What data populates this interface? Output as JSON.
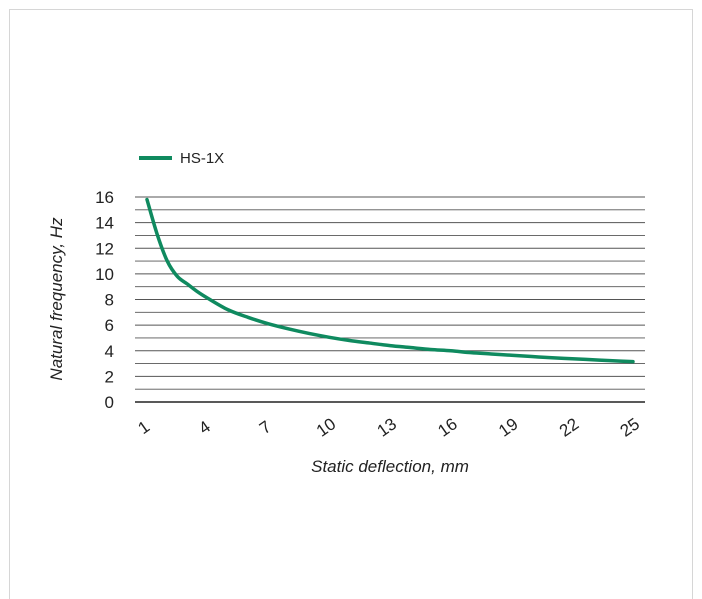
{
  "chart_data": {
    "type": "line",
    "xlabel": "Static deflection, mm",
    "ylabel": "Natural frequency, Hz",
    "x_ticks": [
      1,
      4,
      7,
      10,
      13,
      16,
      19,
      22,
      25
    ],
    "y_ticks": [
      0,
      2,
      4,
      6,
      8,
      10,
      12,
      14,
      16
    ],
    "xlim": [
      1,
      25
    ],
    "ylim": [
      0,
      16
    ],
    "grid": "horizontal",
    "legend_position": "top-left",
    "series": [
      {
        "name": "HS-1X",
        "color": "#0f8a5f",
        "x": [
          1,
          1.5,
          2,
          2.5,
          3,
          3.5,
          4,
          5,
          6,
          7,
          8,
          9,
          10,
          11,
          12,
          13,
          14,
          15,
          16,
          17,
          18,
          19,
          20,
          21,
          22,
          23,
          24,
          25
        ],
        "y": [
          15.8,
          13.1,
          11.0,
          9.8,
          9.2,
          8.6,
          8.1,
          7.2,
          6.6,
          6.1,
          5.7,
          5.35,
          5.05,
          4.8,
          4.6,
          4.4,
          4.25,
          4.1,
          4.0,
          3.85,
          3.75,
          3.65,
          3.55,
          3.45,
          3.38,
          3.3,
          3.22,
          3.15
        ]
      }
    ]
  }
}
